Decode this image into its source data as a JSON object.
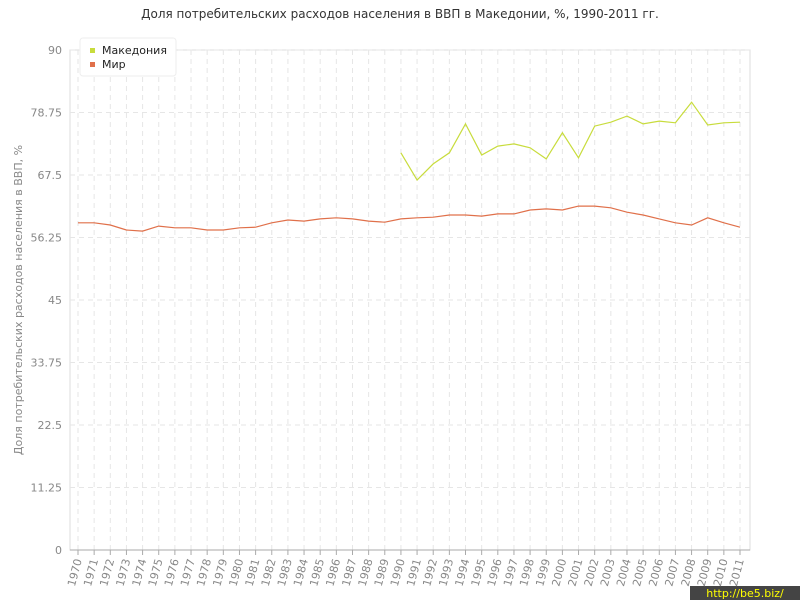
{
  "chart_data": {
    "type": "line",
    "title": "Доля потребительских расходов населения в ВВП в Македонии, %, 1990-2011 гг.",
    "y_label": "Доля потребительских расходов населения в ВВП, %",
    "watermark": "http://be5.biz/",
    "categories": [
      "1970",
      "1971",
      "1972",
      "1973",
      "1974",
      "1975",
      "1976",
      "1977",
      "1978",
      "1979",
      "1980",
      "1981",
      "1982",
      "1983",
      "1984",
      "1985",
      "1986",
      "1987",
      "1988",
      "1989",
      "1990",
      "1991",
      "1992",
      "1993",
      "1994",
      "1995",
      "1996",
      "1997",
      "1998",
      "1999",
      "2000",
      "2001",
      "2002",
      "2003",
      "2004",
      "2005",
      "2006",
      "2007",
      "2008",
      "2009",
      "2010",
      "2011"
    ],
    "series": [
      {
        "name": "Македония",
        "color": "#c8dc3c",
        "values": [
          null,
          null,
          null,
          null,
          null,
          null,
          null,
          null,
          null,
          null,
          null,
          null,
          null,
          null,
          null,
          null,
          null,
          null,
          null,
          null,
          71.5,
          66.6,
          69.5,
          71.5,
          76.7,
          71.1,
          72.7,
          73.1,
          72.4,
          70.4,
          75.1,
          70.6,
          76.3,
          77.0,
          78.1,
          76.7,
          77.2,
          76.9,
          80.6,
          76.5,
          76.9,
          77.0
        ]
      },
      {
        "name": "Мир",
        "color": "#e0704a",
        "values": [
          58.9,
          58.9,
          58.5,
          57.6,
          57.4,
          58.3,
          58.0,
          58.0,
          57.6,
          57.6,
          58.0,
          58.1,
          58.9,
          59.4,
          59.2,
          59.6,
          59.8,
          59.6,
          59.2,
          59.0,
          59.6,
          59.8,
          59.9,
          60.3,
          60.3,
          60.1,
          60.5,
          60.5,
          61.2,
          61.4,
          61.2,
          61.9,
          61.9,
          61.6,
          60.8,
          60.3,
          59.6,
          58.9,
          58.5,
          59.8,
          58.9,
          58.1
        ]
      }
    ],
    "ylim": [
      0,
      90
    ],
    "yticks": [
      0,
      11.25,
      22.5,
      33.75,
      45,
      56.25,
      67.5,
      78.75,
      90
    ],
    "grid": true,
    "legend": "top-left"
  }
}
